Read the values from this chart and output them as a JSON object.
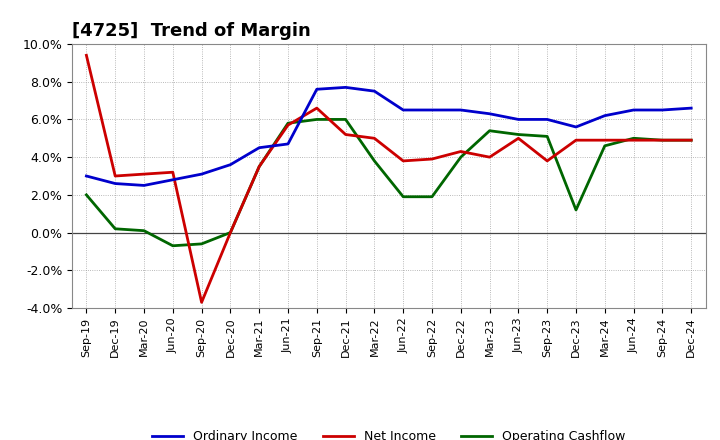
{
  "title": "[4725]  Trend of Margin",
  "x_labels": [
    "Sep-19",
    "Dec-19",
    "Mar-20",
    "Jun-20",
    "Sep-20",
    "Dec-20",
    "Mar-21",
    "Jun-21",
    "Sep-21",
    "Dec-21",
    "Mar-22",
    "Jun-22",
    "Sep-22",
    "Dec-22",
    "Mar-23",
    "Jun-23",
    "Sep-23",
    "Dec-23",
    "Mar-24",
    "Jun-24",
    "Sep-24",
    "Dec-24"
  ],
  "ordinary_income": [
    0.03,
    0.026,
    0.025,
    0.028,
    0.031,
    0.036,
    0.045,
    0.047,
    0.076,
    0.077,
    0.075,
    0.065,
    0.065,
    0.065,
    0.063,
    0.06,
    0.06,
    0.056,
    0.062,
    0.065,
    0.065,
    0.066
  ],
  "net_income": [
    0.094,
    0.03,
    0.031,
    0.032,
    -0.037,
    0.0,
    0.035,
    0.057,
    0.066,
    0.052,
    0.05,
    0.038,
    0.039,
    0.043,
    0.04,
    0.05,
    0.038,
    0.049,
    0.049,
    0.049,
    0.049,
    0.049
  ],
  "operating_cashflow": [
    0.02,
    0.002,
    0.001,
    -0.007,
    -0.006,
    0.0,
    0.035,
    0.058,
    0.06,
    0.06,
    0.038,
    0.019,
    0.019,
    0.04,
    0.054,
    0.052,
    0.051,
    0.012,
    0.046,
    0.05,
    0.049,
    0.049
  ],
  "ordinary_income_color": "#0000cc",
  "net_income_color": "#cc0000",
  "operating_cashflow_color": "#006600",
  "ylim": [
    -0.04,
    0.1
  ],
  "yticks": [
    -0.04,
    -0.02,
    0.0,
    0.02,
    0.04,
    0.06,
    0.08,
    0.1
  ],
  "background_color": "#ffffff",
  "plot_bg_color": "#ffffff",
  "grid_color": "#999999",
  "legend_labels": [
    "Ordinary Income",
    "Net Income",
    "Operating Cashflow"
  ],
  "line_width": 2.0,
  "title_fontsize": 13
}
